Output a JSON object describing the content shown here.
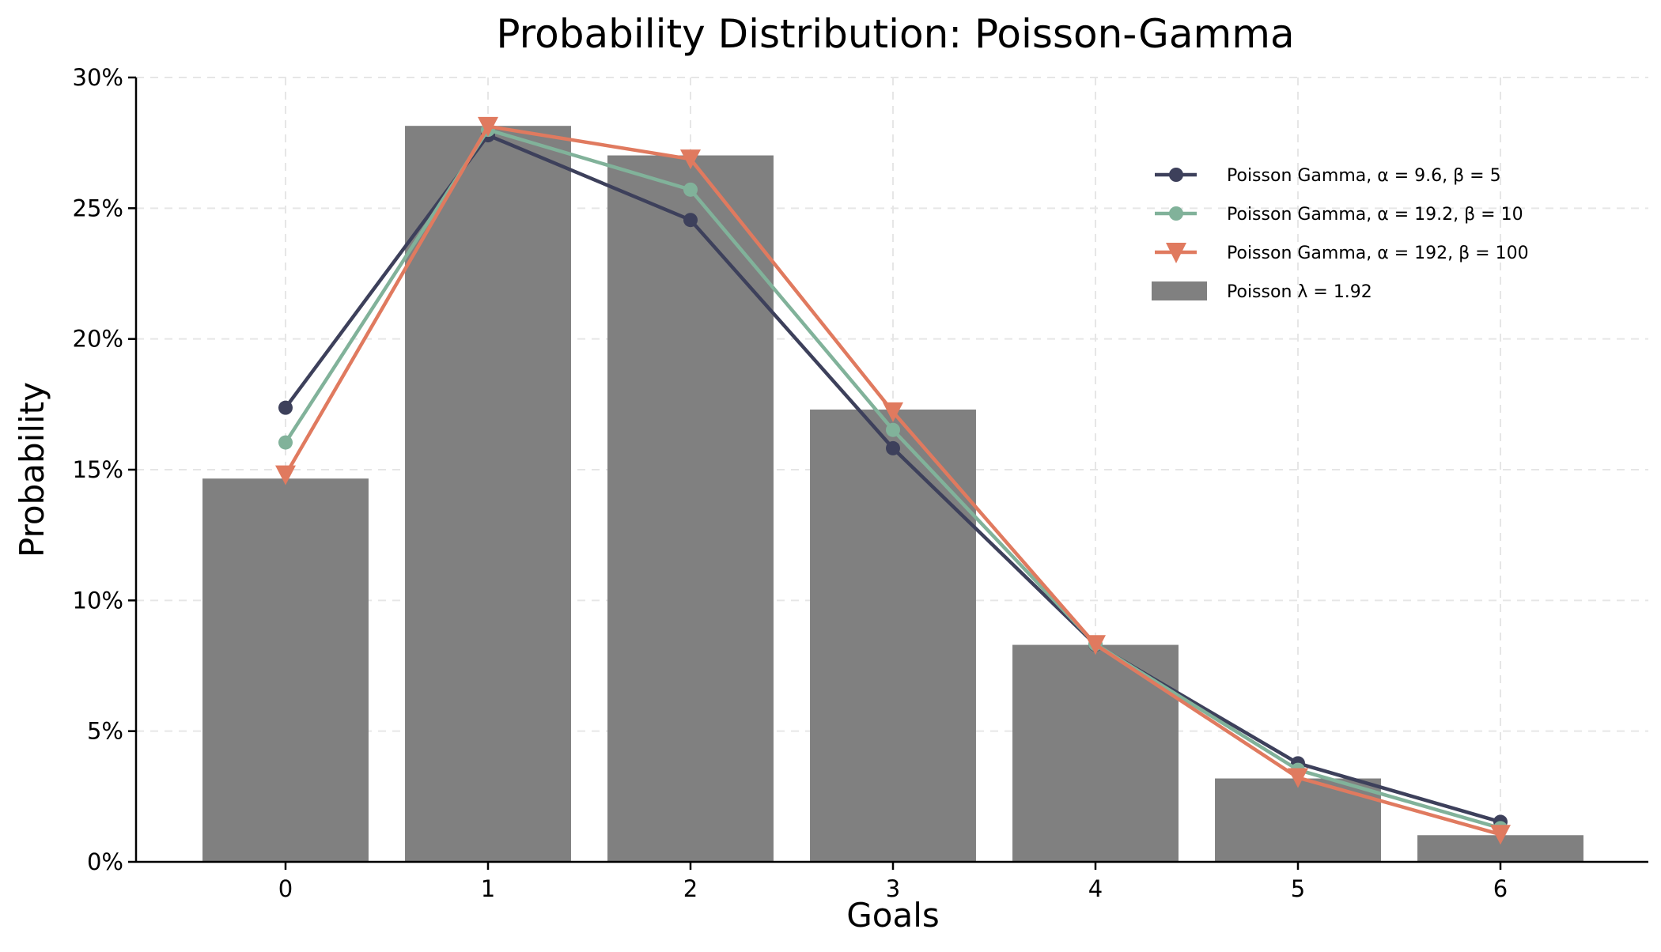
{
  "chart_data": {
    "type": "bar+line",
    "title": "Probability Distribution: Poisson-Gamma",
    "xlabel": "Goals",
    "ylabel": "Probability",
    "categories": [
      "0",
      "1",
      "2",
      "3",
      "4",
      "5",
      "6"
    ],
    "ylim": [
      0,
      0.3
    ],
    "yticks": [
      0,
      0.05,
      0.1,
      0.15,
      0.2,
      0.25,
      0.3
    ],
    "ytick_labels": [
      "0%",
      "5%",
      "10%",
      "15%",
      "20%",
      "25%",
      "30%"
    ],
    "grid": true,
    "legend_position": "top-right",
    "bars": {
      "name": "Poisson λ = 1.92",
      "color": "#808080",
      "values": [
        0.1466,
        0.2815,
        0.2702,
        0.173,
        0.083,
        0.0319,
        0.0102
      ]
    },
    "series": [
      {
        "name": "Poisson Gamma, α = 9.6, β = 5",
        "color": "#3d405b",
        "marker": "circle",
        "values": [
          0.1737,
          0.2779,
          0.2455,
          0.1582,
          0.0831,
          0.0377,
          0.0153
        ]
      },
      {
        "name": "Poisson Gamma, α = 19.2, β = 10",
        "color": "#81b29a",
        "marker": "circle",
        "values": [
          0.1604,
          0.28,
          0.2571,
          0.1652,
          0.0833,
          0.0352,
          0.0129
        ]
      },
      {
        "name": "Poisson Gamma, α = 192, β = 100",
        "color": "#e07a5f",
        "marker": "triangle-down",
        "values": [
          0.148,
          0.2813,
          0.2688,
          0.1721,
          0.0831,
          0.0322,
          0.0105
        ]
      }
    ]
  }
}
